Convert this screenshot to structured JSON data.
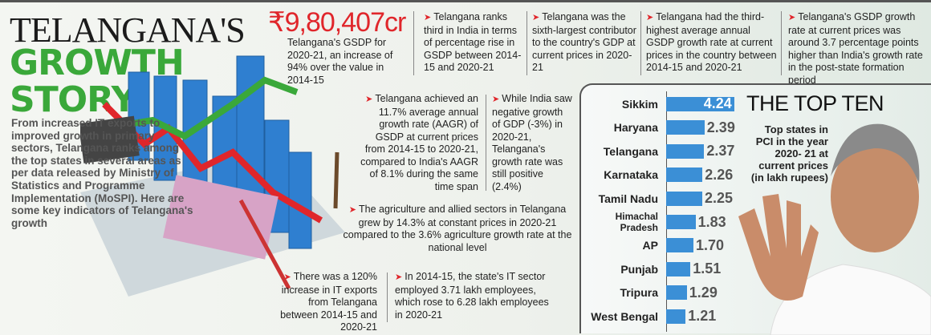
{
  "header": {
    "title_line1": "TELANGANA'S",
    "title_line2": "GROWTH",
    "title_line3": "STORY"
  },
  "intro": "From increased IT exports to improved growth in primary sectors, Telangana ranks among the top states in several areas as per data released by Ministry of Statistics and Programme Implementation (MoSPI). Here are some key indicators of Telangana's growth",
  "gsdp": {
    "value": "₹9,80,407cr",
    "text": "Telangana's GSDP for 2020-21, an increase of 94% over the value in 2014-15"
  },
  "facts": [
    "Telangana ranks third in India in terms of percentage rise in GSDP between 2014-15 and 2020-21",
    "Telangana was the sixth-largest contributor to the country's GDP at current prices in 2020-21",
    "Telangana had the third-highest average annual GSDP growth rate at current prices in the country between 2014-15 and 2020-21",
    "Telangana's GSDP growth rate at current prices was around 3.7 percentage points higher than India's growth rate in the post-state formation period",
    "Telangana achieved an 11.7% average annual growth rate (AAGR) of GSDP at current prices from 2014-15 to 2020-21, compared to India's AAGR of 8.1% during the same time span",
    "While India saw negative growth of GDP (-3%) in 2020-21, Telangana's growth rate was still positive (2.4%)",
    "The agriculture and allied sectors in Telangana grew by 14.3% at constant prices in 2020-21 compared to the 3.6% agriculture growth rate at the national level",
    "There was a 120% increase in IT exports from Telangana between 2014-15 and 2020-21",
    "In 2014-15, the state's IT sector employed 3.71 lakh employees, which rose to 6.28 lakh employees in 2020-21"
  ],
  "colors": {
    "accent": "#e0262b",
    "green": "#3aa83a",
    "bar": "#3b8fd6"
  },
  "chart_data": {
    "type": "bar",
    "orientation": "horizontal",
    "title": "THE TOP TEN",
    "subtitle": "Top states in PCI in the year 2020- 21 at current prices (in lakh rupees)",
    "categories": [
      "Sikkim",
      "Haryana",
      "Telangana",
      "Karnataka",
      "Tamil Nadu",
      "Himachal Pradesh",
      "AP",
      "Punjab",
      "Tripura",
      "West Bengal"
    ],
    "values": [
      4.24,
      2.39,
      2.37,
      2.26,
      2.25,
      1.83,
      1.7,
      1.51,
      1.29,
      1.21
    ],
    "labels": [
      "4.24",
      "2.39",
      "2.37",
      "2.26",
      "2.25",
      "1.83",
      "1.70",
      "1.51",
      "1.29",
      "1.21"
    ]
  }
}
